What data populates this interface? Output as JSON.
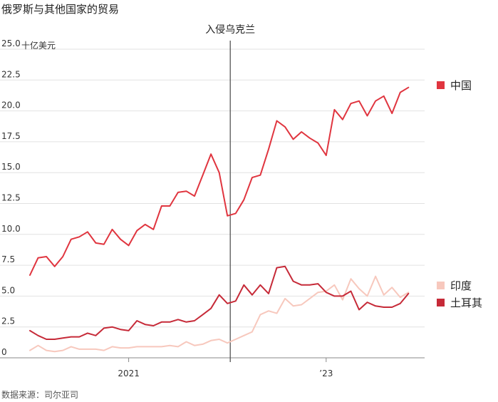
{
  "chart_data": {
    "type": "line",
    "title": "俄罗斯与其他国家的贸易",
    "unit_label": "十亿美元",
    "ylim": [
      0,
      25
    ],
    "y_ticks": [
      "0",
      "2.5",
      "5.0",
      "7.5",
      "10.0",
      "12.5",
      "15.0",
      "17.5",
      "20.0",
      "22.5",
      "25.0"
    ],
    "x_ticks": [
      {
        "label": "2021",
        "month_index": 12
      },
      {
        "label": "’23",
        "month_index": 36
      }
    ],
    "annotation": {
      "label": "入侵乌克兰",
      "month_index": 24
    },
    "source": "数据来源：司尔亚司",
    "grid": true,
    "legend_placement": "right",
    "series": [
      {
        "name": "中国",
        "color": "#e0353f",
        "values": [
          6.7,
          8.1,
          8.2,
          7.4,
          8.2,
          9.6,
          9.8,
          10.2,
          9.3,
          9.2,
          10.4,
          9.6,
          9.1,
          10.3,
          10.8,
          10.4,
          12.3,
          12.3,
          13.4,
          13.5,
          13.1,
          14.8,
          16.5,
          15.0,
          11.5,
          11.7,
          12.8,
          14.6,
          14.8,
          16.9,
          19.2,
          18.7,
          17.7,
          18.3,
          17.8,
          17.4,
          16.4,
          20.1,
          19.3,
          20.6,
          20.8,
          19.6,
          20.8,
          21.2,
          19.8,
          21.5,
          21.9
        ]
      },
      {
        "name": "印度",
        "color": "#f7c8bd",
        "values": [
          0.6,
          1.0,
          0.6,
          0.5,
          0.6,
          0.9,
          0.7,
          0.7,
          0.7,
          0.6,
          0.9,
          0.8,
          0.8,
          0.9,
          0.9,
          0.9,
          0.9,
          1.0,
          0.9,
          1.3,
          1.0,
          1.1,
          1.4,
          1.5,
          1.2,
          1.5,
          1.8,
          2.1,
          3.5,
          3.8,
          3.6,
          4.8,
          4.2,
          4.3,
          4.8,
          5.3,
          5.4,
          5.9,
          4.7,
          6.4,
          5.6,
          5.0,
          6.6,
          5.1,
          5.7,
          4.9,
          5.3
        ]
      },
      {
        "name": "土耳其",
        "color": "#c62a38",
        "values": [
          2.2,
          1.8,
          1.5,
          1.5,
          1.6,
          1.7,
          1.7,
          2.0,
          1.8,
          2.4,
          2.5,
          2.3,
          2.2,
          3.0,
          2.7,
          2.6,
          2.9,
          2.9,
          3.1,
          2.9,
          3.0,
          3.5,
          4.0,
          5.1,
          4.4,
          4.6,
          5.9,
          5.1,
          5.9,
          5.2,
          7.3,
          7.4,
          6.2,
          5.9,
          5.9,
          6.0,
          5.3,
          5.0,
          5.0,
          5.4,
          3.9,
          4.5,
          4.2,
          4.1,
          4.1,
          4.4,
          5.2
        ]
      }
    ]
  }
}
